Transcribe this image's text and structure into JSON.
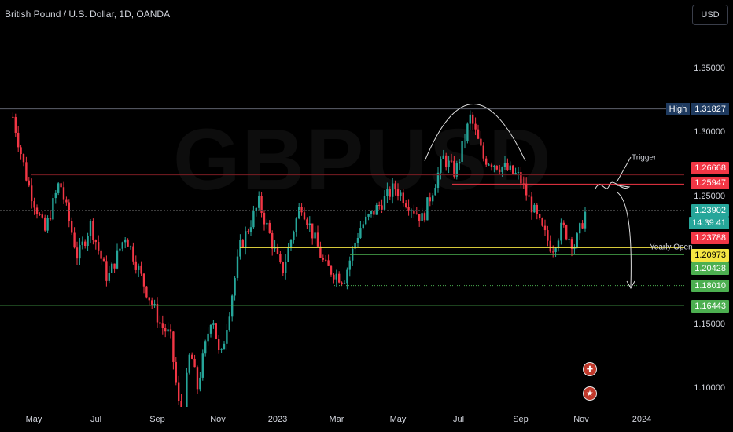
{
  "header": {
    "symbol_title": "British Pound / U.S. Dollar, 1D, OANDA",
    "currency_button": "USD"
  },
  "watermark": {
    "text": "GBPUSD"
  },
  "price_scale": {
    "ticks": [
      "1.35000",
      "1.30000",
      "1.25000",
      "1.15000",
      "1.10000"
    ],
    "high_label": "High",
    "high_value": "1.31827",
    "tags": [
      {
        "value": "1.26668",
        "color": "#f23645"
      },
      {
        "value": "1.25947",
        "color": "#f23645"
      },
      {
        "value": "1.23902",
        "color": "#26a69a"
      },
      {
        "value": "14:39:41",
        "color": "#26a69a"
      },
      {
        "value": "1.23788",
        "color": "#f23645"
      },
      {
        "value": "1.20973",
        "color": "#f5e642"
      },
      {
        "value": "1.20428",
        "color": "#4caf50"
      },
      {
        "value": "1.18010",
        "color": "#4caf50"
      },
      {
        "value": "1.16443",
        "color": "#4caf50"
      }
    ]
  },
  "time_scale": {
    "labels": [
      "May",
      "Jul",
      "Sep",
      "Nov",
      "2023",
      "Mar",
      "May",
      "Jul",
      "Sep",
      "Nov",
      "2024"
    ]
  },
  "annotations": {
    "trigger": "Trigger",
    "yearly_open": "Yearly Open"
  },
  "colors": {
    "up": "#26a69a",
    "down": "#f23645",
    "background": "#000000"
  },
  "chart_data": {
    "type": "candlestick",
    "title": "British Pound / U.S. Dollar, 1D, OANDA",
    "xlabel": "",
    "ylabel": "",
    "ylim": [
      1.08,
      1.355
    ],
    "x_range": [
      "2022-04-10",
      "2024-01-31"
    ],
    "grid": false,
    "levels": [
      {
        "name": "High",
        "value": 1.31827
      },
      {
        "value": 1.26668
      },
      {
        "value": 1.25947
      },
      {
        "value": 1.23788
      },
      {
        "name": "Yearly Open",
        "value": 1.20973
      },
      {
        "value": 1.20428
      },
      {
        "value": 1.1801
      },
      {
        "value": 1.16443
      }
    ],
    "last_price": 1.23902,
    "countdown": "14:39:41",
    "series": [
      {
        "values_path": [
          [
            "2022-04-10",
            1.312
          ],
          [
            "2022-04-25",
            1.26
          ],
          [
            "2022-05-12",
            1.222
          ],
          [
            "2022-05-27",
            1.262
          ],
          [
            "2022-06-14",
            1.202
          ],
          [
            "2022-06-27",
            1.228
          ],
          [
            "2022-07-14",
            1.185
          ],
          [
            "2022-08-01",
            1.22
          ],
          [
            "2022-08-20",
            1.18
          ],
          [
            "2022-09-05",
            1.15
          ],
          [
            "2022-09-15",
            1.14
          ],
          [
            "2022-09-26",
            1.07
          ],
          [
            "2022-10-05",
            1.13
          ],
          [
            "2022-10-12",
            1.1
          ],
          [
            "2022-10-27",
            1.16
          ],
          [
            "2022-11-04",
            1.12
          ],
          [
            "2022-11-24",
            1.21
          ],
          [
            "2022-12-13",
            1.245
          ],
          [
            "2023-01-05",
            1.19
          ],
          [
            "2023-01-24",
            1.245
          ],
          [
            "2023-02-17",
            1.195
          ],
          [
            "2023-03-08",
            1.185
          ],
          [
            "2023-03-24",
            1.225
          ],
          [
            "2023-04-28",
            1.257
          ],
          [
            "2023-05-26",
            1.232
          ],
          [
            "2023-06-16",
            1.28
          ],
          [
            "2023-06-28",
            1.268
          ],
          [
            "2023-07-13",
            1.312
          ],
          [
            "2023-07-26",
            1.28
          ],
          [
            "2023-08-16",
            1.272
          ],
          [
            "2023-08-31",
            1.265
          ],
          [
            "2023-09-22",
            1.225
          ],
          [
            "2023-10-03",
            1.209
          ],
          [
            "2023-10-13",
            1.226
          ],
          [
            "2023-10-26",
            1.211
          ],
          [
            "2023-11-06",
            1.239
          ]
        ]
      }
    ]
  }
}
